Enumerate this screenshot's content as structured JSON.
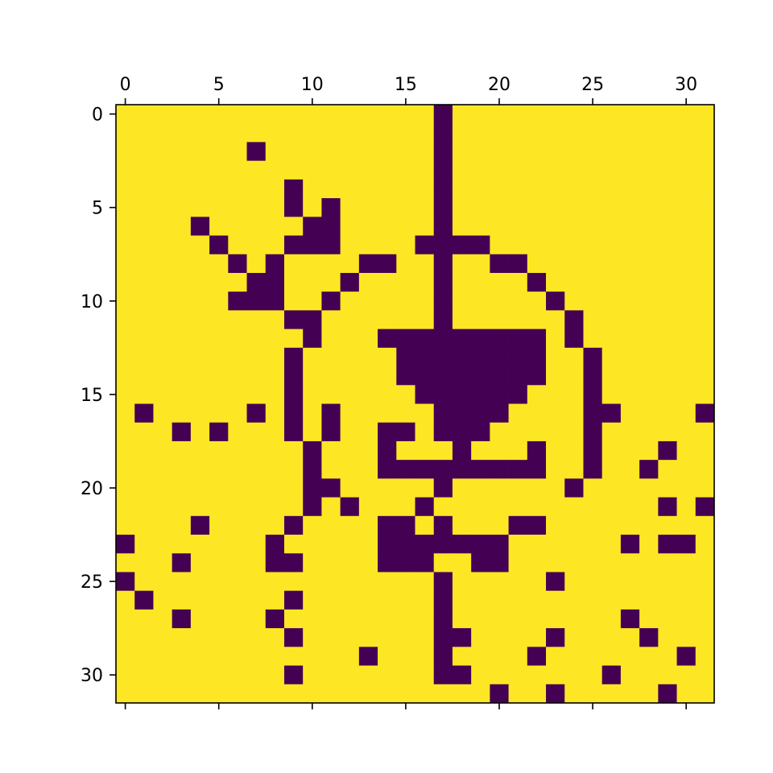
{
  "chart_data": {
    "type": "heatmap",
    "title": "",
    "xlabel": "",
    "ylabel": "",
    "rows": 32,
    "cols": 32,
    "x_tick_position": "top",
    "x_ticks": [
      0,
      5,
      10,
      15,
      20,
      25,
      30
    ],
    "y_ticks": [
      0,
      5,
      10,
      15,
      20,
      25,
      30
    ],
    "x_tick_labels": [
      "0",
      "5",
      "10",
      "15",
      "20",
      "25",
      "30"
    ],
    "y_tick_labels": [
      "0",
      "5",
      "10",
      "15",
      "20",
      "25",
      "30"
    ],
    "colormap": {
      "low": "#440154",
      "high": "#fde725"
    },
    "grid": false,
    "matrix": [
      "11111111111111111011111111111111",
      "11111111111111111011111111111111",
      "11111110111111111011111111111111",
      "11111111111111111011111111111111",
      "11111111101111111011111111111111",
      "11111111101011111011111111111111",
      "11110111110011111011111111111111",
      "11111011100011110000111111111111",
      "11111101011110011011001111111111",
      "11111110011101111011110111111111",
      "11111100011011111011111011111111",
      "11111111100111111011111101111111",
      "11111111110111000000000101111111",
      "11111111101111100000000110111111",
      "11111111101111100000000110111111",
      "11111111101111110000001110111111",
      "10111110101011111000011110011110",
      "11101011101011001000111110111111",
      "11111111110111011101110110111011",
      "11111111110111000000000110110111",
      "11111111110011111011111101111111",
      "11111111110101110111111111111010",
      "11110111101111001011100111111111",
      "01111111011111000000011111101001",
      "11101111001111000110011111111111",
      "01111111111111111011111011111111",
      "10111111101111111011111111111111",
      "11101111011111111011111111101111",
      "11111111101111111001111011110111",
      "11111111111110111011110111111101",
      "11111111101111111001111111011111",
      "11111111111111111111011011111011"
    ]
  }
}
